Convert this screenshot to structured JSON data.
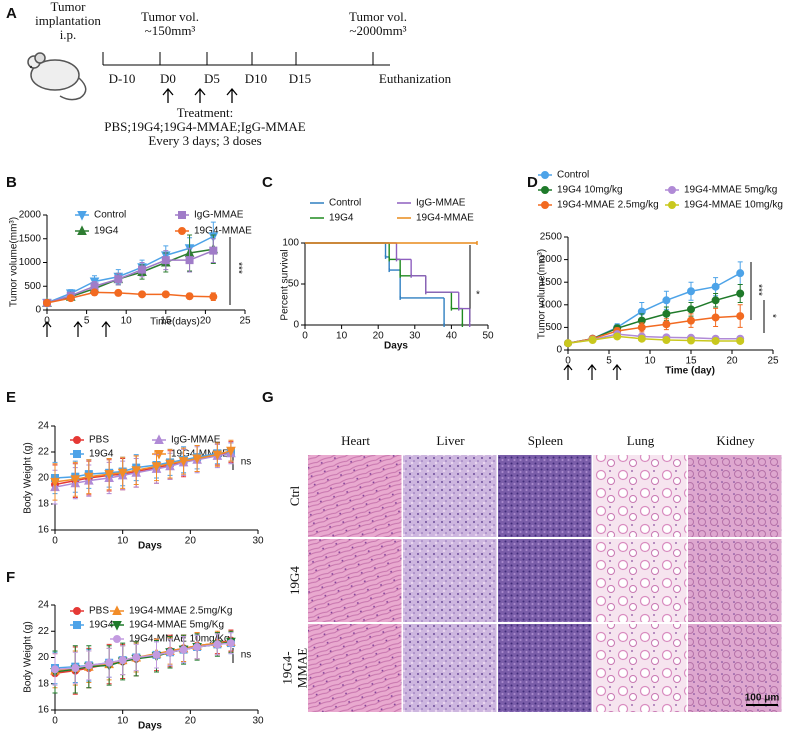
{
  "panels": [
    "A",
    "B",
    "C",
    "D",
    "E",
    "F",
    "G"
  ],
  "timeline": {
    "implantation": [
      "Tumor",
      "implantation",
      "i.p."
    ],
    "start_volume": [
      "Tumor vol.",
      "~150mm³"
    ],
    "end_volume": [
      "Tumor vol.",
      "~2000mm³"
    ],
    "days": [
      "D-10",
      "D0",
      "D5",
      "D10",
      "D15",
      "Euthanization"
    ],
    "treatment": [
      "Treatment:",
      "PBS;19G4;19G4-MMAE;IgG-MMAE",
      "Every 3 days; 3 doses"
    ]
  },
  "histology": {
    "columns": [
      "Heart",
      "Liver",
      "Spleen",
      "Lung",
      "Kidney"
    ],
    "rows": [
      [
        "Ctrl"
      ],
      [
        "19G4"
      ],
      [
        "19G4-",
        "MMAE"
      ]
    ],
    "scale_bar": "100 μm"
  },
  "chart_data": [
    {
      "type": "line",
      "y_label": "Tumor volume(mm³)",
      "x_label": "Time(days)",
      "x": [
        0,
        3,
        6,
        9,
        12,
        15,
        18,
        21
      ],
      "series": [
        {
          "name": "Control",
          "color": "#4da3e8",
          "marker": "triangle-down",
          "values": [
            150,
            350,
            600,
            700,
            900,
            1150,
            1300,
            1550
          ],
          "errors": [
            30,
            80,
            120,
            150,
            150,
            200,
            220,
            300
          ]
        },
        {
          "name": "19G4",
          "color": "#2e7d32",
          "marker": "triangle",
          "values": [
            150,
            280,
            450,
            650,
            800,
            1000,
            1200,
            1280
          ],
          "errors": [
            30,
            60,
            90,
            120,
            150,
            200,
            380,
            300
          ]
        },
        {
          "name": "IgG-MMAE",
          "color": "#a07cc8",
          "marker": "square",
          "values": [
            150,
            300,
            500,
            650,
            850,
            1050,
            1050,
            1250
          ],
          "errors": [
            30,
            60,
            100,
            120,
            150,
            200,
            250,
            250
          ]
        },
        {
          "name": "19G4-MMAE",
          "color": "#f26a21",
          "marker": "circle",
          "values": [
            150,
            250,
            370,
            360,
            330,
            330,
            290,
            280
          ],
          "errors": [
            30,
            50,
            60,
            60,
            50,
            50,
            60,
            80
          ]
        }
      ],
      "xlim": [
        0,
        25
      ],
      "xticks": [
        0,
        5,
        10,
        15,
        20,
        25
      ],
      "ylim": [
        0,
        2000
      ],
      "yticks": [
        0,
        500,
        1000,
        1500,
        2000
      ],
      "annotations": [
        "***"
      ]
    },
    {
      "type": "step",
      "y_label": "Percent survival",
      "x_label": "Days",
      "series": [
        {
          "name": "Control",
          "color": "#2f7fc1",
          "x": [
            0,
            22,
            23,
            26,
            38
          ],
          "values": [
            100,
            83,
            67,
            33,
            0
          ]
        },
        {
          "name": "19G4",
          "color": "#1f8a1f",
          "x": [
            0,
            23,
            26,
            33,
            40,
            43
          ],
          "values": [
            100,
            80,
            60,
            40,
            20,
            0
          ]
        },
        {
          "name": "IgG-MMAE",
          "color": "#8e5fbf",
          "x": [
            0,
            25,
            29,
            33,
            42,
            45
          ],
          "values": [
            100,
            80,
            60,
            40,
            20,
            0
          ]
        },
        {
          "name": "19G4-MMAE",
          "color": "#e88a1a",
          "x": [
            0,
            47
          ],
          "values": [
            100,
            100
          ]
        }
      ],
      "xlim": [
        0,
        50
      ],
      "xticks": [
        0,
        10,
        20,
        30,
        40,
        50
      ],
      "ylim": [
        0,
        100
      ],
      "yticks": [
        0,
        50,
        100
      ],
      "annotations": [
        "*"
      ]
    },
    {
      "type": "line",
      "y_label": "Tumor volume(mm³)",
      "x_label": "Time (day)",
      "x": [
        0,
        3,
        6,
        9,
        12,
        15,
        18,
        21
      ],
      "series": [
        {
          "name": "Control",
          "color": "#4da3e8",
          "marker": "circle",
          "values": [
            150,
            250,
            500,
            850,
            1100,
            1300,
            1400,
            1700
          ],
          "errors": [
            30,
            50,
            80,
            200,
            200,
            200,
            200,
            250
          ]
        },
        {
          "name": "19G4 10mg/kg",
          "color": "#1f7a2a",
          "marker": "circle",
          "values": [
            150,
            250,
            480,
            650,
            800,
            900,
            1100,
            1250
          ],
          "errors": [
            30,
            40,
            70,
            150,
            150,
            150,
            150,
            200
          ]
        },
        {
          "name": "19G4-MMAE 2.5mg/kg",
          "color": "#f26a21",
          "marker": "circle",
          "values": [
            150,
            250,
            420,
            500,
            570,
            650,
            720,
            750
          ],
          "errors": [
            30,
            40,
            70,
            100,
            120,
            150,
            200,
            250
          ]
        },
        {
          "name": "19G4-MMAE 5mg/kg",
          "color": "#b08ad6",
          "marker": "circle",
          "values": [
            150,
            230,
            350,
            300,
            280,
            270,
            250,
            250
          ],
          "errors": [
            30,
            30,
            40,
            50,
            50,
            50,
            40,
            40
          ]
        },
        {
          "name": "19G4-MMAE 10mg/kg",
          "color": "#c9c81e",
          "marker": "circle",
          "values": [
            150,
            220,
            300,
            250,
            220,
            210,
            200,
            200
          ],
          "errors": [
            30,
            30,
            40,
            40,
            40,
            40,
            30,
            30
          ]
        }
      ],
      "xlim": [
        0,
        25
      ],
      "xticks": [
        0,
        5,
        10,
        15,
        20,
        25
      ],
      "ylim": [
        0,
        2500
      ],
      "yticks": [
        0,
        500,
        1000,
        1500,
        2000,
        2500
      ],
      "annotations": [
        "***",
        "*"
      ]
    },
    {
      "type": "line",
      "y_label": "Body Weight (g)",
      "x_label": "Days",
      "x": [
        0,
        3,
        5,
        8,
        10,
        12,
        15,
        17,
        19,
        21,
        24,
        26
      ],
      "series": [
        {
          "name": "PBS",
          "color": "#e53935",
          "marker": "circle",
          "values": [
            19.5,
            19.8,
            20,
            20.2,
            20.3,
            20.5,
            20.8,
            21,
            21.2,
            21.5,
            21.8,
            22
          ],
          "errors": [
            1.5,
            1.3,
            1.3,
            1.2,
            1.2,
            1.2,
            1.2,
            1.1,
            1.1,
            1,
            0.8,
            0.8
          ]
        },
        {
          "name": "19G4",
          "color": "#4da3e8",
          "marker": "square",
          "values": [
            20,
            20.1,
            20.3,
            20.4,
            20.5,
            20.8,
            21,
            21.2,
            21.4,
            21.6,
            21.9,
            22
          ],
          "errors": [
            1.2,
            1.2,
            1.1,
            1.1,
            1.1,
            1,
            1,
            1,
            1,
            0.9,
            0.8,
            0.7
          ]
        },
        {
          "name": "IgG-MMAE",
          "color": "#b08ad6",
          "marker": "triangle",
          "values": [
            19.3,
            19.6,
            19.8,
            20,
            20.2,
            20.4,
            20.7,
            20.9,
            21.2,
            21.4,
            21.7,
            21.9
          ],
          "errors": [
            1.3,
            1.2,
            1.2,
            1.2,
            1.1,
            1.1,
            1.1,
            1,
            1,
            1,
            0.9,
            0.8
          ]
        },
        {
          "name": "19G4-MMAE",
          "color": "#f28c28",
          "marker": "triangle-down",
          "values": [
            19.7,
            19.9,
            20.1,
            20.3,
            20.4,
            20.6,
            20.9,
            21.1,
            21.3,
            21.5,
            21.8,
            22.1
          ],
          "errors": [
            1.4,
            1.3,
            1.3,
            1.2,
            1.2,
            1.1,
            1.1,
            1.1,
            1,
            1,
            0.9,
            0.8
          ]
        }
      ],
      "xlim": [
        0,
        30
      ],
      "xticks": [
        0,
        10,
        20,
        30
      ],
      "ylim": [
        16,
        24
      ],
      "yticks": [
        16,
        18,
        20,
        22,
        24
      ],
      "annotations": [
        "ns"
      ]
    },
    {
      "type": "line",
      "y_label": "Body Weight (g)",
      "x_label": "Days",
      "x": [
        0,
        3,
        5,
        8,
        10,
        12,
        15,
        17,
        19,
        21,
        24,
        26
      ],
      "series": [
        {
          "name": "PBS",
          "color": "#e53935",
          "marker": "circle",
          "values": [
            18.8,
            19,
            19.2,
            19.5,
            19.7,
            19.9,
            20.2,
            20.5,
            20.7,
            20.9,
            21.1,
            21.3
          ],
          "errors": [
            1.5,
            1.8,
            1.5,
            1.5,
            1.3,
            1.3,
            1.2,
            1.2,
            1,
            1,
            0.8,
            0.8
          ]
        },
        {
          "name": "19G4",
          "color": "#4da3e8",
          "marker": "square",
          "values": [
            19.2,
            19.3,
            19.4,
            19.6,
            19.8,
            20,
            20.2,
            20.4,
            20.6,
            20.8,
            21,
            21.1
          ],
          "errors": [
            1.2,
            1.2,
            1.2,
            1.1,
            1.1,
            1.1,
            1,
            1,
            1,
            0.9,
            0.8,
            0.8
          ]
        },
        {
          "name": "19G4-MMAE 2.5mg/Kg",
          "color": "#f28c28",
          "marker": "triangle",
          "values": [
            19,
            19.2,
            19.3,
            19.5,
            19.8,
            20,
            20.3,
            20.5,
            20.7,
            20.9,
            21.1,
            21.2
          ],
          "errors": [
            1.3,
            1.3,
            1.2,
            1.2,
            1.1,
            1.1,
            1.1,
            1,
            1,
            1,
            0.9,
            0.8
          ]
        },
        {
          "name": "19G4-MMAE 5mg/Kg",
          "color": "#1f7a2a",
          "marker": "triangle-down",
          "values": [
            18.9,
            19.1,
            19.3,
            19.4,
            19.7,
            19.9,
            20.1,
            20.4,
            20.6,
            20.8,
            21,
            21.2
          ],
          "errors": [
            1.6,
            1.8,
            1.6,
            1.5,
            1.4,
            1.3,
            1.2,
            1.2,
            1.1,
            1,
            0.9,
            0.8
          ]
        },
        {
          "name": "19G4-MMAE 10mg/Kg",
          "color": "#c39be0",
          "marker": "circle",
          "values": [
            19.1,
            19.2,
            19.4,
            19.6,
            19.8,
            20,
            20.2,
            20.4,
            20.6,
            20.8,
            21,
            21.1
          ],
          "errors": [
            1.2,
            1.2,
            1.1,
            1.1,
            1.1,
            1,
            1,
            1,
            1,
            0.9,
            0.8,
            0.8
          ]
        }
      ],
      "xlim": [
        0,
        30
      ],
      "xticks": [
        0,
        10,
        20,
        30
      ],
      "ylim": [
        16,
        24
      ],
      "yticks": [
        16,
        18,
        20,
        22,
        24
      ],
      "annotations": [
        "ns"
      ]
    }
  ]
}
